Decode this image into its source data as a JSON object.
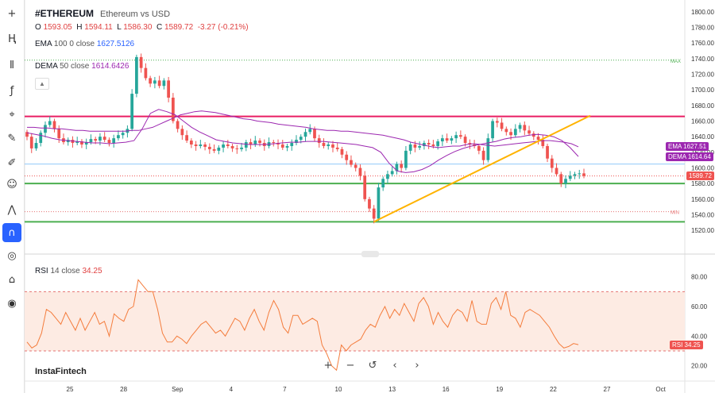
{
  "header": {
    "symbol": "#ETHEREUM",
    "subtitle": "Ethereum vs USD",
    "ohlc": {
      "o_label": "O",
      "o": "1593.05",
      "h_label": "H",
      "h": "1594.11",
      "l_label": "L",
      "l": "1586.30",
      "c_label": "C",
      "c": "1589.72",
      "change": "-3.27 (-0.21%)"
    },
    "ema": {
      "name": "EMA",
      "params": "100 0 close",
      "value": "1627.5126"
    },
    "dema": {
      "name": "DEMA",
      "params": "50 close",
      "value": "1614.6426"
    },
    "rsi": {
      "name": "RSI",
      "params": "14 close",
      "value": "34.25"
    }
  },
  "brand": "InstaFintech",
  "controls": {
    "zoom_in": "+",
    "zoom_out": "−",
    "reset": "↺",
    "prev": "‹",
    "next": "›"
  },
  "toolbar": [
    "crosshair-icon",
    "trend-line-icon",
    "fibonacci-icon",
    "formula-icon",
    "node-icon",
    "brush-icon",
    "pen-icon",
    "emoji-icon",
    "measure-icon",
    "magnet-icon",
    "eye-hide-icon",
    "lock-icon",
    "camera-icon"
  ],
  "colors": {
    "up": "#26a69a",
    "down": "#ef5350",
    "ema": "#2962ff",
    "dema": "#9c27b0",
    "rsi": "#f47c3c",
    "resistance": "#e91e63",
    "support": "#4caf50",
    "trend": "#ffb300"
  },
  "chart_data": [
    {
      "type": "candlestick",
      "x_tick_labels": [
        "25",
        "28",
        "Sep",
        "4",
        "7",
        "10",
        "13",
        "16",
        "19",
        "22",
        "27",
        "Oct"
      ],
      "y_ticks": [
        1520,
        1540,
        1560,
        1580,
        1600,
        1620,
        1640,
        1660,
        1680,
        1700,
        1720,
        1740,
        1760,
        1780,
        1800
      ],
      "ylim": [
        1510,
        1810
      ],
      "close_series": [
        1640,
        1625,
        1632,
        1645,
        1655,
        1660,
        1650,
        1638,
        1633,
        1636,
        1632,
        1634,
        1630,
        1633,
        1637,
        1635,
        1640,
        1636,
        1632,
        1638,
        1642,
        1645,
        1650,
        1695,
        1742,
        1728,
        1715,
        1708,
        1712,
        1705,
        1712,
        1690,
        1660,
        1650,
        1642,
        1635,
        1630,
        1628,
        1630,
        1627,
        1624,
        1622,
        1626,
        1630,
        1628,
        1625,
        1624,
        1626,
        1633,
        1630,
        1635,
        1632,
        1628,
        1633,
        1632,
        1630,
        1626,
        1628,
        1632,
        1636,
        1640,
        1646,
        1650,
        1638,
        1632,
        1628,
        1630,
        1626,
        1624,
        1617,
        1610,
        1604,
        1600,
        1590,
        1560,
        1548,
        1535,
        1575,
        1586,
        1592,
        1596,
        1605,
        1600,
        1622,
        1630,
        1626,
        1628,
        1632,
        1630,
        1628,
        1634,
        1638,
        1635,
        1638,
        1642,
        1640,
        1632,
        1630,
        1628,
        1622,
        1610,
        1638,
        1660,
        1658,
        1650,
        1646,
        1642,
        1650,
        1655,
        1648,
        1644,
        1640,
        1636,
        1628,
        1612,
        1600,
        1592,
        1580,
        1586,
        1590,
        1592,
        1593,
        1589.72
      ],
      "ema_series": [
        1652,
        1652,
        1651,
        1651,
        1650,
        1650,
        1649,
        1648,
        1648,
        1647,
        1647,
        1647,
        1647,
        1647,
        1647,
        1648,
        1648,
        1650,
        1652,
        1656,
        1660,
        1664,
        1668,
        1670,
        1672,
        1673,
        1672,
        1671,
        1669,
        1667,
        1665,
        1663,
        1662,
        1660,
        1659,
        1658,
        1656,
        1655,
        1654,
        1653,
        1652,
        1650,
        1649,
        1648,
        1648,
        1647,
        1647,
        1646,
        1645,
        1644,
        1643,
        1642,
        1640,
        1638,
        1636,
        1633,
        1631,
        1629,
        1627,
        1626,
        1627,
        1628,
        1628,
        1630,
        1631,
        1630,
        1629,
        1628,
        1629,
        1630,
        1631,
        1632,
        1633,
        1634,
        1635,
        1635,
        1634,
        1633,
        1631,
        1627
      ],
      "dema_series": [
        1645,
        1643,
        1641,
        1638,
        1636,
        1635,
        1634,
        1633,
        1632,
        1632,
        1631,
        1632,
        1633,
        1635,
        1650,
        1670,
        1675,
        1672,
        1668,
        1660,
        1652,
        1646,
        1641,
        1636,
        1634,
        1632,
        1631,
        1630,
        1630,
        1630,
        1631,
        1632,
        1633,
        1633,
        1634,
        1634,
        1634,
        1633,
        1632,
        1631,
        1630,
        1628,
        1626,
        1620,
        1606,
        1596,
        1594,
        1595,
        1598,
        1603,
        1610,
        1616,
        1621,
        1625,
        1628,
        1630,
        1632,
        1634,
        1637,
        1639,
        1640,
        1642,
        1643,
        1642,
        1640,
        1635,
        1626,
        1614.64
      ],
      "resistance": 1666,
      "support_levels": [
        1580,
        1531
      ],
      "trendline": {
        "from": {
          "index": 76,
          "price": 1531
        },
        "to": {
          "index": 113,
          "price": 1667
        }
      },
      "current_price": 1589.72,
      "gridline_price": 1605,
      "max_label": "MAX",
      "min_label": "MIN",
      "badges": [
        {
          "name": "EMA",
          "value": "1627.51"
        },
        {
          "name": "DEMA",
          "value": "1614.64"
        },
        {
          "name": "",
          "value": "1589.72"
        }
      ]
    },
    {
      "type": "line",
      "name": "RSI",
      "y_ticks": [
        20,
        40,
        60,
        80
      ],
      "ylim": [
        15,
        90
      ],
      "upper_band": 70,
      "lower_band": 30,
      "values": [
        36,
        32,
        34,
        42,
        58,
        56,
        52,
        48,
        56,
        50,
        44,
        52,
        44,
        50,
        56,
        48,
        50,
        40,
        55,
        52,
        50,
        58,
        60,
        78,
        74,
        70,
        70,
        58,
        42,
        36,
        36,
        40,
        38,
        35,
        40,
        44,
        48,
        50,
        46,
        42,
        44,
        40,
        46,
        52,
        50,
        44,
        52,
        58,
        50,
        44,
        56,
        64,
        58,
        46,
        42,
        54,
        54,
        48,
        50,
        52,
        50,
        34,
        28,
        20,
        17,
        34,
        30,
        34,
        36,
        38,
        44,
        48,
        46,
        54,
        60,
        52,
        58,
        54,
        62,
        56,
        50,
        62,
        66,
        60,
        48,
        56,
        50,
        46,
        54,
        58,
        56,
        50,
        64,
        50,
        48,
        48,
        62,
        66,
        58,
        70,
        54,
        52,
        46,
        56,
        58,
        56,
        54,
        50,
        46,
        40,
        35,
        32,
        33,
        35,
        34.25
      ],
      "badge": {
        "name": "RSI",
        "value": "34.25"
      }
    }
  ]
}
